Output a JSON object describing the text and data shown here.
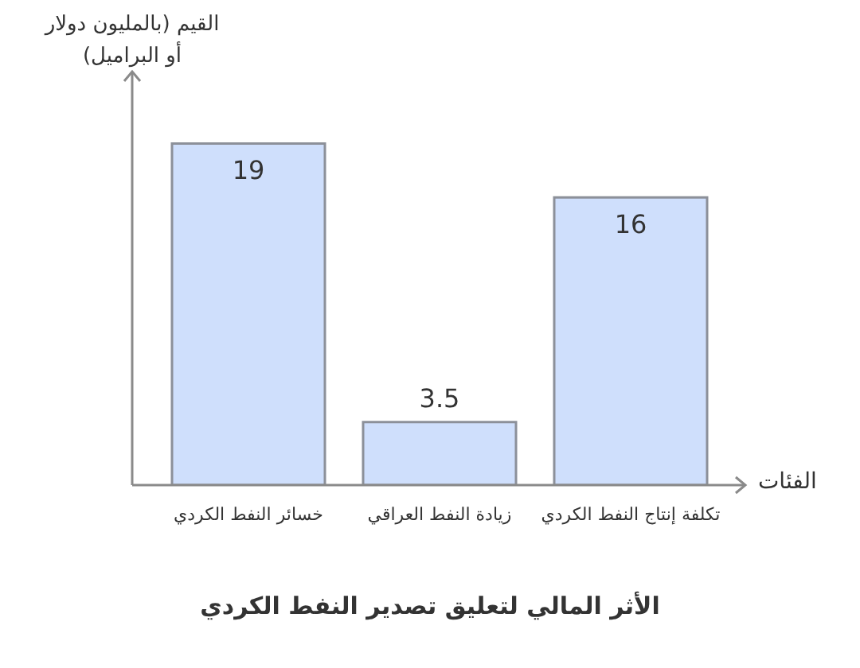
{
  "chart_data": {
    "type": "bar",
    "title": "الأثر المالي لتعليق تصدير النفط الكردي",
    "xlabel": "الفئات",
    "ylabel": "القيم (بالمليون دولار أو البراميل)",
    "categories": [
      "خسائر النفط الكردي",
      "زيادة النفط العراقي",
      "تكلفة إنتاج النفط الكردي"
    ],
    "values": [
      19,
      3.5,
      16
    ],
    "color": "#cfdffc",
    "ylim": [
      0,
      23
    ],
    "data_labels": true,
    "tick_labels": "x"
  }
}
